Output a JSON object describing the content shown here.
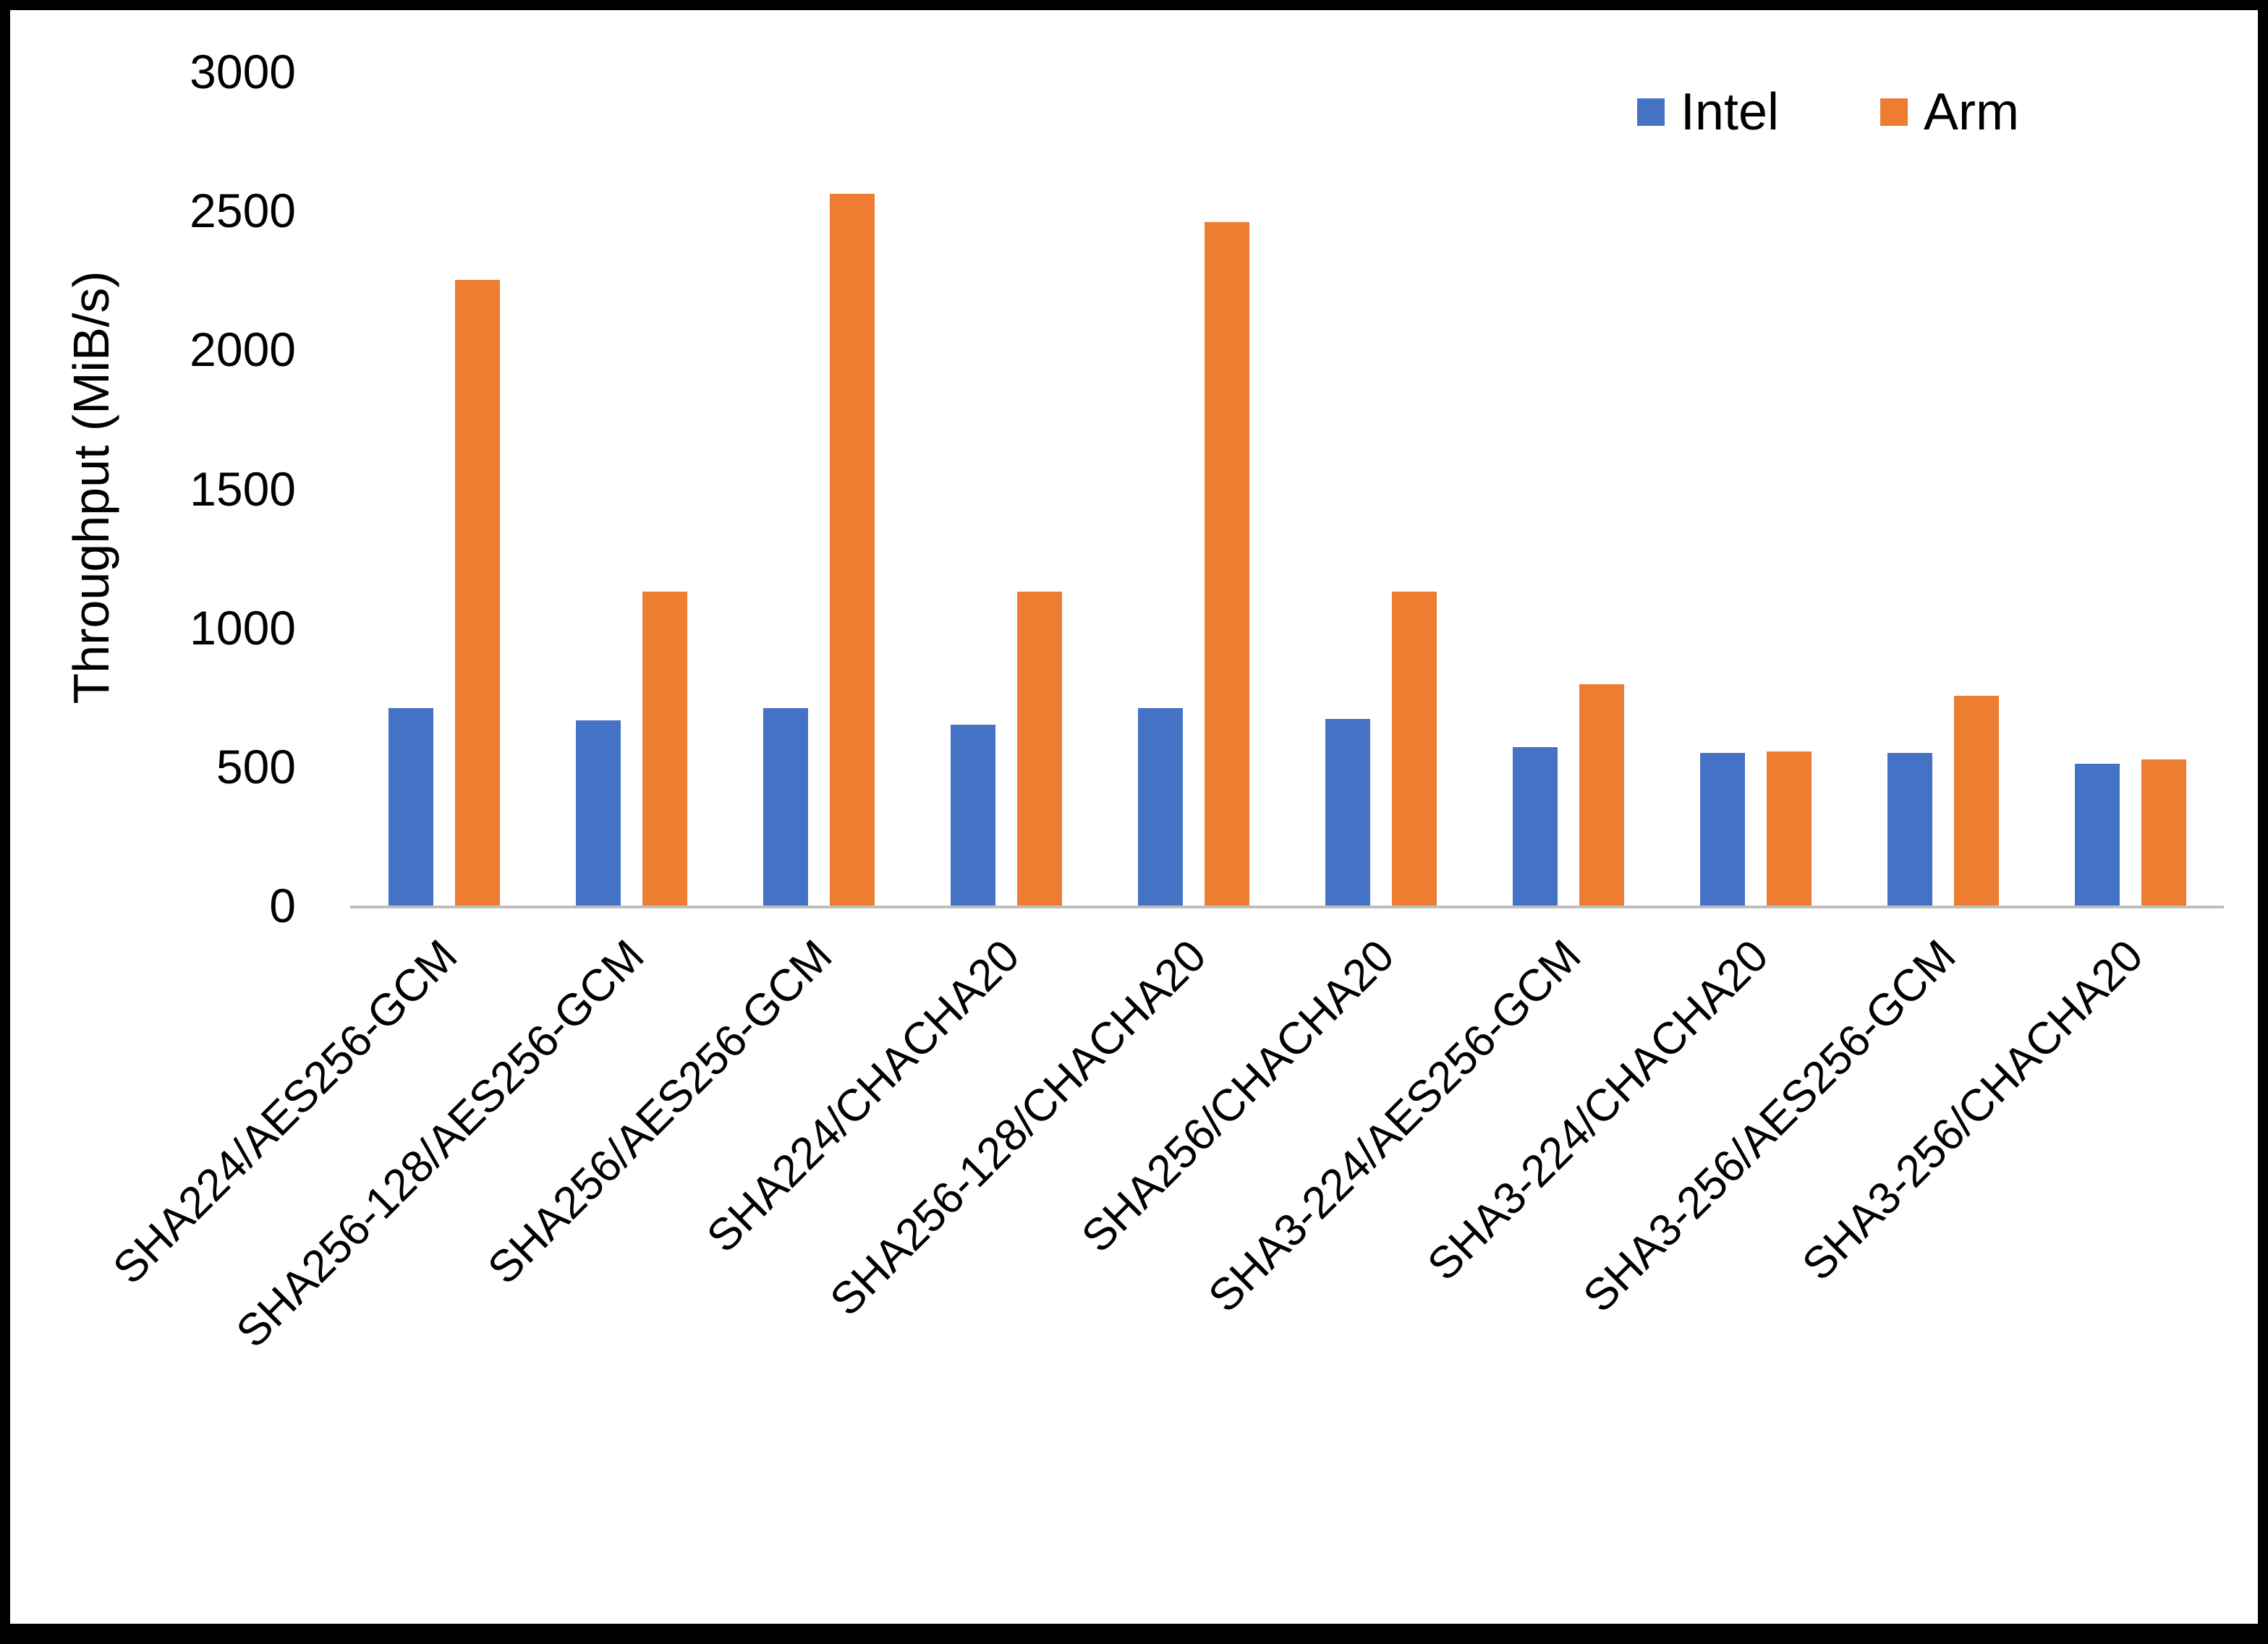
{
  "chart_data": {
    "type": "bar",
    "title": "",
    "xlabel": "",
    "ylabel": "Throughput (MiB/s)",
    "ylim": [
      0,
      3000
    ],
    "yticks": [
      0,
      500,
      1000,
      1500,
      2000,
      2500,
      3000
    ],
    "grid": false,
    "legend_position": "top-right",
    "categories": [
      "SHA224/AES256-GCM",
      "SHA256-128/AES256-GCM",
      "SHA256/AES256-GCM",
      "SHA224/CHACHA20",
      "SHA256-128/CHACHA20",
      "SHA256/CHACHA20",
      "SHA3-224/AES256-GCM",
      "SHA3-224/CHACHA20",
      "SHA3-256/AES256-GCM",
      "SHA3-256/CHACHA20"
    ],
    "series": [
      {
        "name": "Intel",
        "color": "#4472C4",
        "values": [
          710,
          665,
          710,
          650,
          710,
          670,
          570,
          550,
          550,
          510
        ]
      },
      {
        "name": "Arm",
        "color": "#ED7D31",
        "values": [
          2250,
          1130,
          2560,
          1130,
          2460,
          1130,
          795,
          555,
          755,
          525
        ]
      }
    ]
  }
}
